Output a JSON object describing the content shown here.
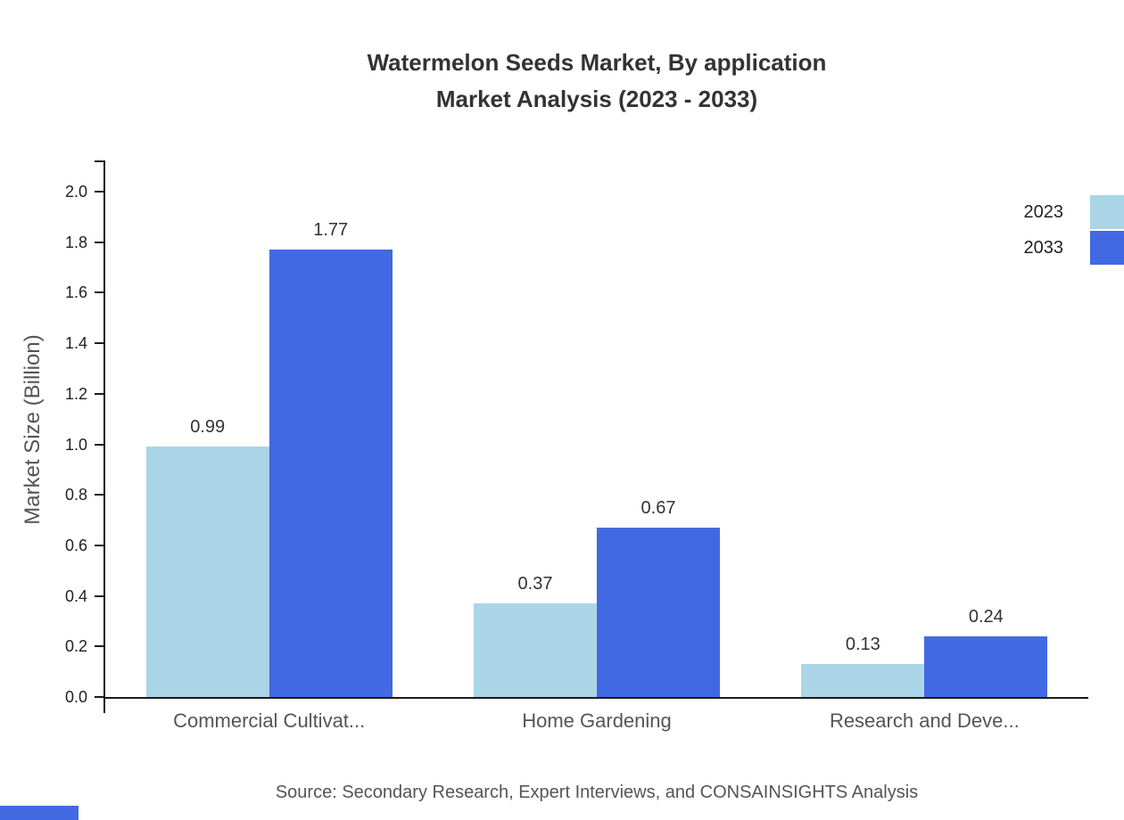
{
  "title": {
    "line1": "Watermelon Seeds Market, By application",
    "line2": "Market Analysis (2023 - 2033)"
  },
  "chart_data": {
    "type": "bar",
    "title": "Watermelon Seeds Market, By application Market Analysis (2023 - 2033)",
    "categories": [
      "Commercial Cultivat...",
      "Home Gardening",
      "Research and Deve..."
    ],
    "series": [
      {
        "name": "2023",
        "color": "#aad5e6",
        "values": [
          0.99,
          0.37,
          0.13
        ]
      },
      {
        "name": "2033",
        "color": "#4169e1",
        "values": [
          1.77,
          0.67,
          0.24
        ]
      }
    ],
    "xlabel": "",
    "ylabel": "Market Size (Billion)",
    "ylim": [
      0,
      2.0
    ],
    "yticks": [
      0.0,
      0.2,
      0.4,
      0.6,
      0.8,
      1.0,
      1.2,
      1.4,
      1.6,
      1.8,
      2.0
    ],
    "grid": false,
    "legend_position": "top-right"
  },
  "source": "Source: Secondary Research, Expert Interviews, and CONSAINSIGHTS Analysis",
  "accent_color": "#4169e1"
}
